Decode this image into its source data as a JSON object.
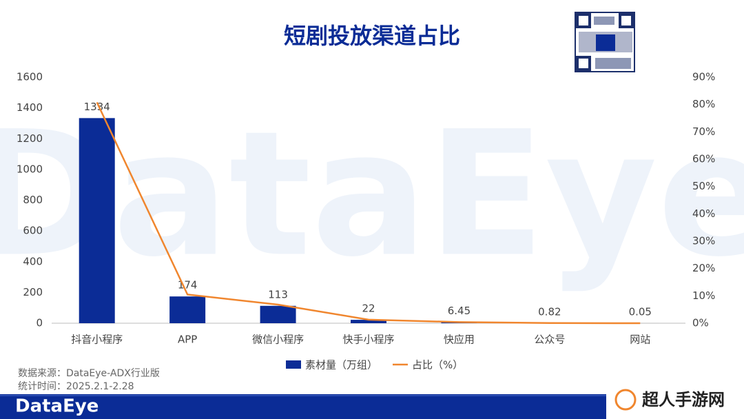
{
  "chart_data": {
    "type": "bar-line",
    "title": "短剧投放渠道占比",
    "categories": [
      "抖音小程序",
      "APP",
      "微信小程序",
      "快手小程序",
      "快应用",
      "公众号",
      "网站"
    ],
    "series": [
      {
        "name": "素材量（万组）",
        "type": "bar",
        "color": "#0b2c96",
        "values": [
          1334,
          174,
          113,
          22,
          6.45,
          0.82,
          0.05
        ]
      },
      {
        "name": "占比（%）",
        "type": "line",
        "axis": "y2",
        "color": "#f0862e",
        "values": [
          80.8,
          10.5,
          6.8,
          1.3,
          0.4,
          0.05,
          0
        ]
      }
    ],
    "ylim": [
      0,
      1600
    ],
    "yticks": [
      0,
      200,
      400,
      600,
      800,
      1000,
      1200,
      1400,
      1600
    ],
    "y2lim": [
      0,
      90
    ],
    "y2ticks": [
      {
        "value": 0,
        "label": "0%"
      },
      {
        "value": 10,
        "label": "10%"
      },
      {
        "value": 20,
        "label": "20%"
      },
      {
        "value": 30,
        "label": "30%"
      },
      {
        "value": 40,
        "label": "40%"
      },
      {
        "value": 50,
        "label": "50%"
      },
      {
        "value": 60,
        "label": "60%"
      },
      {
        "value": 70,
        "label": "70%"
      },
      {
        "value": 80,
        "label": "80%"
      },
      {
        "value": 90,
        "label": "90%"
      }
    ],
    "grid": false,
    "legend": "bottom"
  },
  "watermark": "DataEye",
  "footer": {
    "source": "数据来源：DataEye-ADX行业版",
    "period": "统计时间：2025.2.1-2.28",
    "logo": "DataEye",
    "site": "超人手游网"
  }
}
